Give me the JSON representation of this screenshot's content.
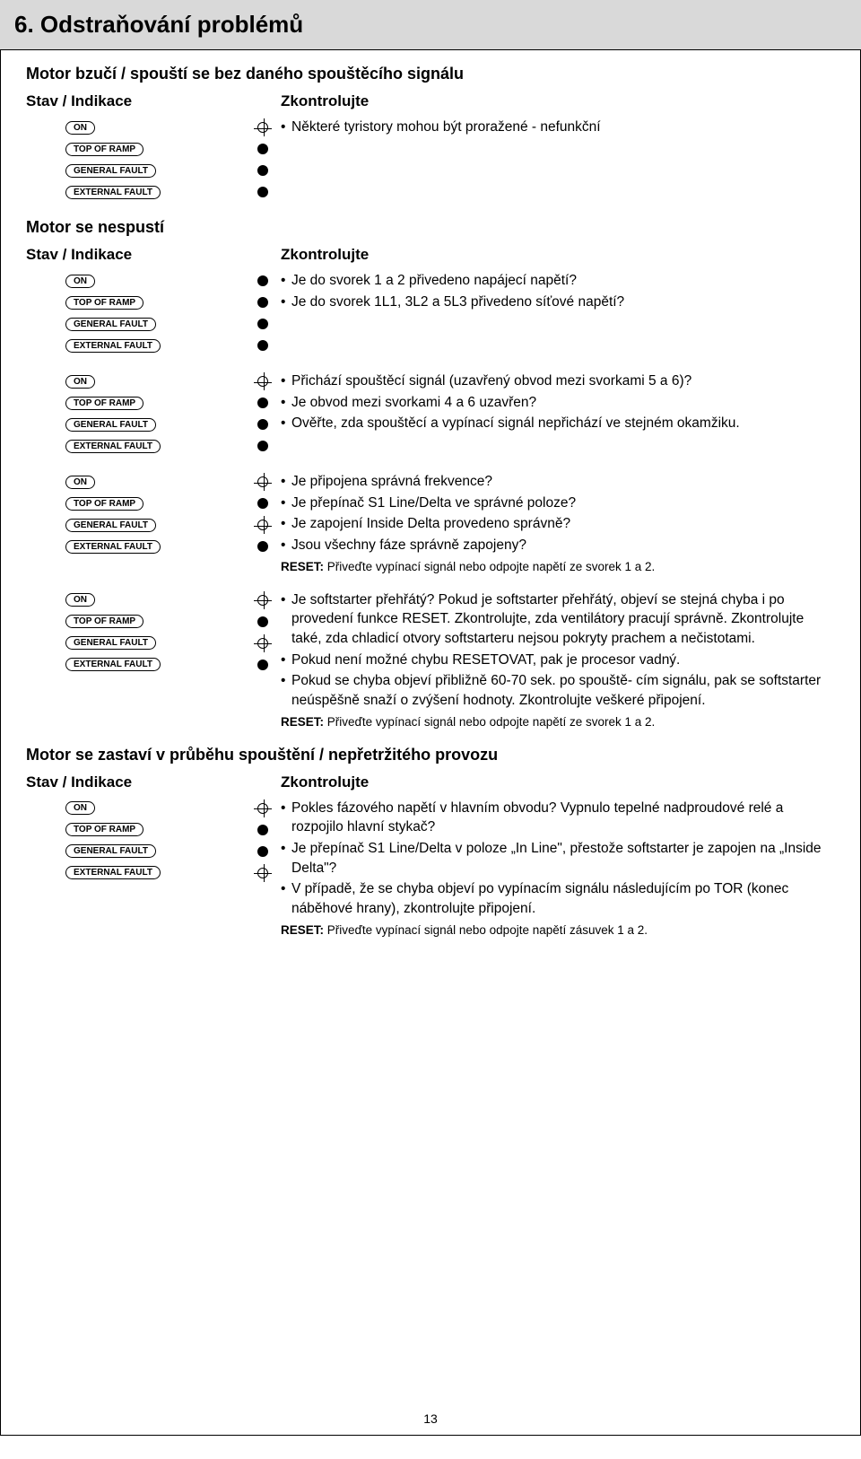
{
  "title": "6. Odstraňování problémů",
  "stav_label": "Stav / Indikace",
  "zkontrolujte_label": "Zkontrolujte",
  "ind_labels": {
    "on": "ON",
    "top": "TOP OF RAMP",
    "general": "GENERAL FAULT",
    "external": "EXTERNAL FAULT"
  },
  "section1": {
    "title": "Motor bzučí / spouští se bez daného spouštěcího signálu",
    "rows": [
      {
        "leds": [
          "open-rays",
          "filled",
          "filled",
          "filled"
        ],
        "bullets": [
          "Některé tyristory mohou být proražené - nefunkční"
        ]
      }
    ]
  },
  "section2": {
    "title": "Motor se nespustí",
    "rows": [
      {
        "leds": [
          "filled",
          "filled",
          "filled",
          "filled"
        ],
        "bullets": [
          "Je do svorek 1 a 2 přivedeno napájecí napětí?",
          "Je do svorek 1L1, 3L2 a 5L3 přivedeno síťové napětí?"
        ]
      },
      {
        "leds": [
          "open-rays",
          "filled",
          "filled",
          "filled"
        ],
        "bullets": [
          "Přichází spouštěcí signál (uzavřený obvod mezi svorkami 5 a 6)?",
          "Je obvod mezi svorkami 4 a 6 uzavřen?",
          "Ověřte, zda spouštěcí a vypínací signál nepřichází ve stejném okamžiku."
        ]
      },
      {
        "leds": [
          "open-rays",
          "filled",
          "open-rays",
          "filled"
        ],
        "bullets": [
          "Je připojena správná frekvence?",
          "Je přepínač S1 Line/Delta ve správné poloze?",
          "Je zapojení Inside Delta provedeno správně?",
          "Jsou všechny fáze správně zapojeny?"
        ],
        "reset": "Přiveďte vypínací signál nebo odpojte napětí ze svorek 1 a 2."
      },
      {
        "leds": [
          "open-rays",
          "filled",
          "open-rays",
          "filled"
        ],
        "bullets": [
          "Je softstarter přehřátý? Pokud je softstarter přehřátý, objeví se stejná chyba i po provedení funkce RESET. Zkontrolujte, zda ventilátory pracují správně. Zkontrolujte také, zda chladicí otvory softstarteru nejsou pokryty prachem a nečistotami.",
          "Pokud není možné chybu RESETOVAT, pak je procesor vadný.",
          "Pokud se chyba objeví přibližně 60-70 sek. po spouště- cím signálu, pak se softstarter neúspěšně snaží o zvýšení hodnoty. Zkontrolujte veškeré připojení."
        ],
        "reset": "Přiveďte vypínací signál nebo odpojte napětí ze svorek 1 a 2."
      }
    ]
  },
  "section3": {
    "title": "Motor se zastaví v průběhu spouštění / nepřetržitého provozu",
    "rows": [
      {
        "leds": [
          "open-rays",
          "filled",
          "filled",
          "open-rays"
        ],
        "bullets": [
          "Pokles fázového napětí v hlavním obvodu? Vypnulo tepelné nadproudové relé a rozpojilo hlavní stykač?",
          "Je přepínač S1 Line/Delta v poloze „In Line\", přestože softstarter je zapojen na „Inside Delta\"?",
          "V případě, že se chyba objeví po vypínacím signálu následujícím po TOR (konec náběhové hrany), zkontrolujte připojení."
        ],
        "reset": "Přiveďte vypínací signál nebo odpojte napětí zásuvek 1 a 2."
      }
    ]
  },
  "reset_label": "RESET:",
  "page_number": "13"
}
